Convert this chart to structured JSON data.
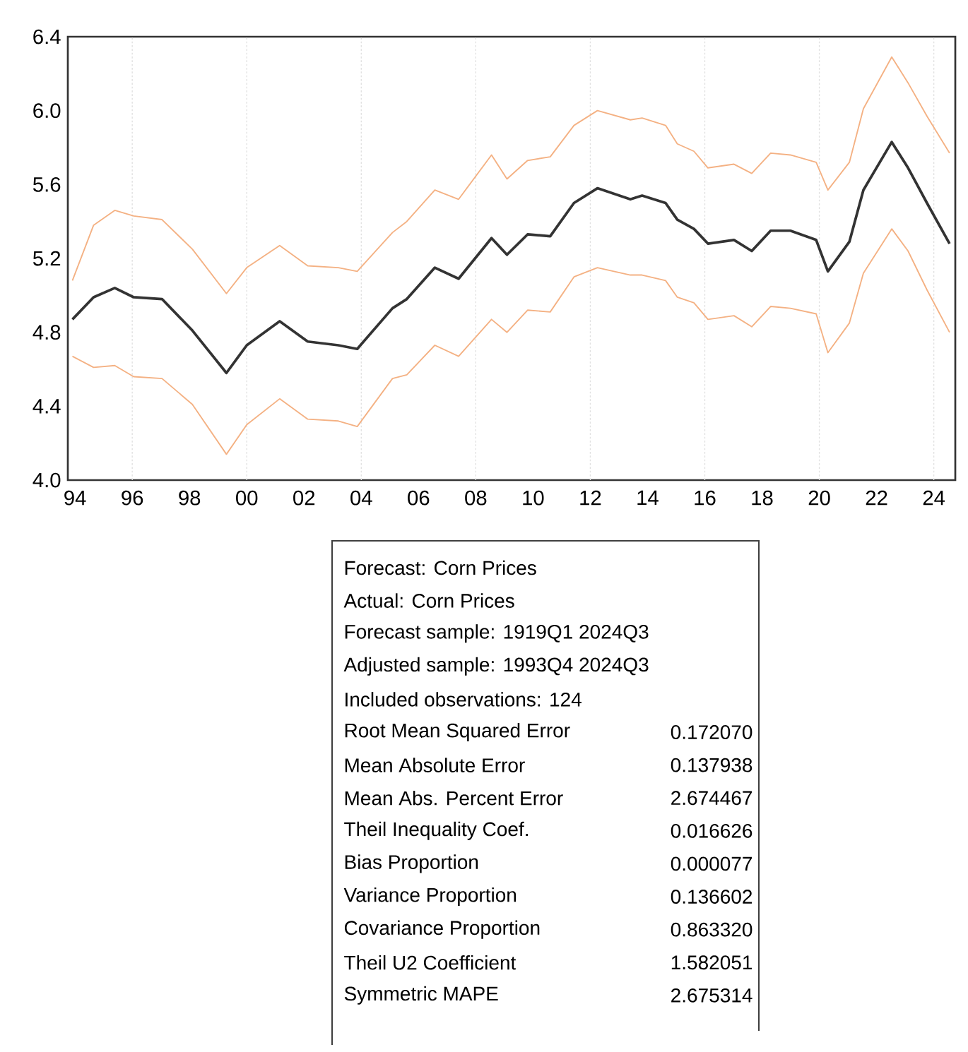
{
  "chart_data": [
    {
      "type": "line",
      "x": [
        1993.91,
        1994.65,
        1995.39,
        1996.05,
        1997.04,
        1998.1,
        1999.29,
        2000.0,
        2001.15,
        2002.13,
        2003.2,
        2003.86,
        2005.09,
        2005.59,
        2006.57,
        2007.4,
        2008.55,
        2009.09,
        2009.81,
        2010.6,
        2011.43,
        2012.25,
        2013.4,
        2013.81,
        2014.63,
        2015.04,
        2015.62,
        2016.11,
        2017.02,
        2017.64,
        2018.3,
        2018.99,
        2019.89,
        2020.3,
        2021.05,
        2021.54,
        2022.53,
        2023.1,
        2023.76,
        2024.55
      ],
      "series": [
        {
          "color": "#333333",
          "values": [
            4.87,
            4.99,
            5.04,
            4.99,
            4.98,
            4.81,
            4.58,
            4.73,
            4.86,
            4.75,
            4.73,
            4.71,
            4.93,
            4.98,
            5.15,
            5.09,
            5.31,
            5.22,
            5.33,
            5.32,
            5.5,
            5.58,
            5.52,
            5.54,
            5.5,
            5.41,
            5.36,
            5.28,
            5.3,
            5.24,
            5.35,
            5.35,
            5.3,
            5.13,
            5.29,
            5.57,
            5.83,
            5.69,
            5.5,
            5.28
          ]
        },
        {
          "color": "#f4b183",
          "values": [
            5.08,
            5.38,
            5.46,
            5.43,
            5.41,
            5.25,
            5.01,
            5.15,
            5.27,
            5.16,
            5.15,
            5.13,
            5.34,
            5.4,
            5.57,
            5.52,
            5.76,
            5.63,
            5.73,
            5.75,
            5.92,
            6.0,
            5.95,
            5.96,
            5.92,
            5.82,
            5.78,
            5.69,
            5.71,
            5.66,
            5.77,
            5.76,
            5.72,
            5.57,
            5.72,
            6.01,
            6.29,
            6.15,
            5.97,
            5.77
          ]
        },
        {
          "color": "#f4b183",
          "values": [
            4.67,
            4.61,
            4.62,
            4.56,
            4.55,
            4.41,
            4.14,
            4.3,
            4.44,
            4.33,
            4.32,
            4.29,
            4.55,
            4.57,
            4.73,
            4.67,
            4.87,
            4.8,
            4.92,
            4.91,
            5.1,
            5.15,
            5.11,
            5.11,
            5.08,
            4.99,
            4.96,
            4.87,
            4.89,
            4.83,
            4.94,
            4.93,
            4.9,
            4.69,
            4.85,
            5.12,
            5.36,
            5.24,
            5.03,
            4.8
          ]
        }
      ],
      "xlim": [
        1993.75,
        2024.75
      ],
      "xticks": [
        {
          "value": 1994,
          "label": "94"
        },
        {
          "value": 1996,
          "label": "96"
        },
        {
          "value": 1998,
          "label": "98"
        },
        {
          "value": 2000,
          "label": "00"
        },
        {
          "value": 2002,
          "label": "02"
        },
        {
          "value": 2004,
          "label": "04"
        },
        {
          "value": 2006,
          "label": "06"
        },
        {
          "value": 2008,
          "label": "08"
        },
        {
          "value": 2010,
          "label": "10"
        },
        {
          "value": 2012,
          "label": "12"
        },
        {
          "value": 2014,
          "label": "14"
        },
        {
          "value": 2016,
          "label": "16"
        },
        {
          "value": 2018,
          "label": "18"
        },
        {
          "value": 2020,
          "label": "20"
        },
        {
          "value": 2022,
          "label": "22"
        },
        {
          "value": 2024,
          "label": "24"
        },
        {
          "value": 1996,
          "label": null
        },
        {
          "value": 2000,
          "label": null
        },
        {
          "value": 2004,
          "label": null
        },
        {
          "value": 2008,
          "label": null
        },
        {
          "value": 2012,
          "label": null
        },
        {
          "value": 2016,
          "label": null
        },
        {
          "value": 2020,
          "label": null
        },
        {
          "value": 2024,
          "label": null
        }
      ],
      "ylim": [
        4.0,
        6.4
      ],
      "yticks": [
        {
          "value": 4.0,
          "label": "4.0"
        },
        {
          "value": 4.4,
          "label": "4.4"
        },
        {
          "value": 4.8,
          "label": "4.8"
        },
        {
          "value": 5.2,
          "label": "5.2"
        },
        {
          "value": 5.6,
          "label": "5.6"
        },
        {
          "value": 6.0,
          "label": "6.0"
        },
        {
          "value": 6.4,
          "label": "6.4"
        }
      ],
      "grid": "x"
    },
    {
      "type": "other",
      "categories": [
        "Forecast: Corn Prices",
        "Actual: Corn Prices",
        "Forecast sample: 1919Q1 2024Q3",
        "Adjusted sample: 1993Q4 2024Q3",
        "Included observations: 124",
        "Root Mean Squared Error",
        "Mean Absolute Error",
        "Mean Abs. Percent Error",
        "Theil Inequality Coef.",
        "Bias Proportion",
        "Variance Proportion",
        "Covariance Proportion",
        "Theil U2 Coefficient",
        "Symmetric MAPE"
      ],
      "value_labels": [
        null,
        null,
        null,
        null,
        null,
        "0.172070",
        "0.137938",
        "2.674467",
        "0.016626",
        "0.000077",
        "0.136602",
        "0.863320",
        "1.582051",
        "2.675314"
      ]
    }
  ]
}
